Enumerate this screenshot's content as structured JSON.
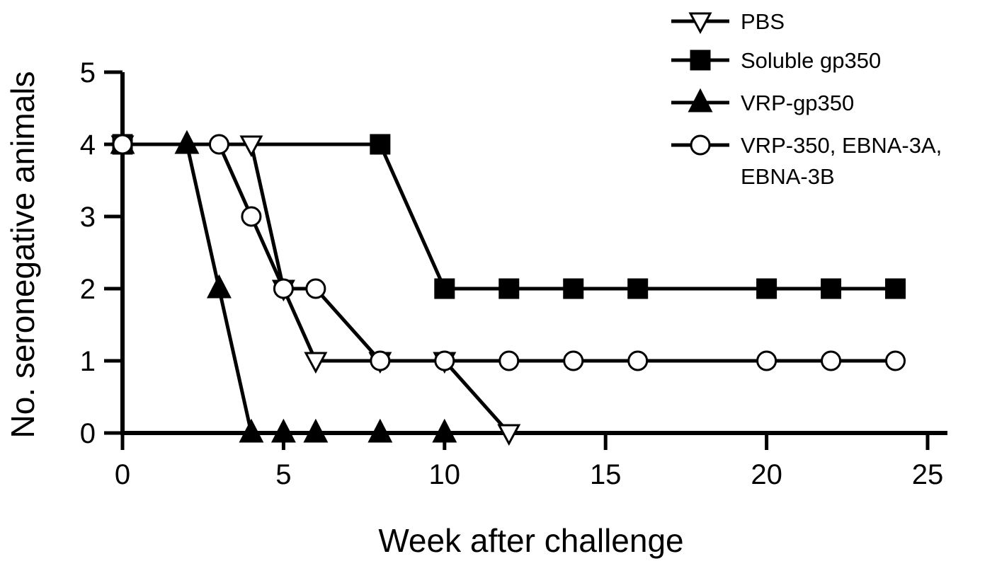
{
  "chart_data": {
    "type": "line",
    "xlabel": "Week after challenge",
    "ylabel": "No. seronegative animals",
    "xlim": [
      0,
      25
    ],
    "ylim": [
      0,
      5
    ],
    "xticks": [
      "0",
      "5",
      "10",
      "15",
      "20",
      "25"
    ],
    "yticks": [
      "0",
      "1",
      "2",
      "3",
      "4",
      "5"
    ],
    "grid": false,
    "legend_position": "top-right",
    "series": [
      {
        "name": "PBS",
        "marker": "triangle-down-open",
        "x": [
          0,
          4,
          5,
          6,
          8,
          10,
          12
        ],
        "y": [
          4,
          4,
          2,
          1,
          1,
          1,
          0
        ]
      },
      {
        "name": "Soluble gp350",
        "marker": "square-filled",
        "x": [
          0,
          8,
          10,
          12,
          14,
          16,
          20,
          22,
          24
        ],
        "y": [
          4,
          4,
          2,
          2,
          2,
          2,
          2,
          2,
          2
        ]
      },
      {
        "name": "VRP-gp350",
        "marker": "triangle-up-filled",
        "x": [
          0,
          2,
          3,
          4,
          5,
          6,
          8,
          10
        ],
        "y": [
          4,
          4,
          2,
          0,
          0,
          0,
          0,
          0
        ]
      },
      {
        "name_lines": [
          "VRP-350, EBNA-3A,",
          "EBNA-3B"
        ],
        "marker": "circle-open",
        "x": [
          0,
          3,
          4,
          5,
          6,
          8,
          10,
          12,
          14,
          16,
          20,
          22,
          24
        ],
        "y": [
          4,
          4,
          3,
          2,
          2,
          1,
          1,
          1,
          1,
          1,
          1,
          1,
          1
        ]
      }
    ]
  }
}
